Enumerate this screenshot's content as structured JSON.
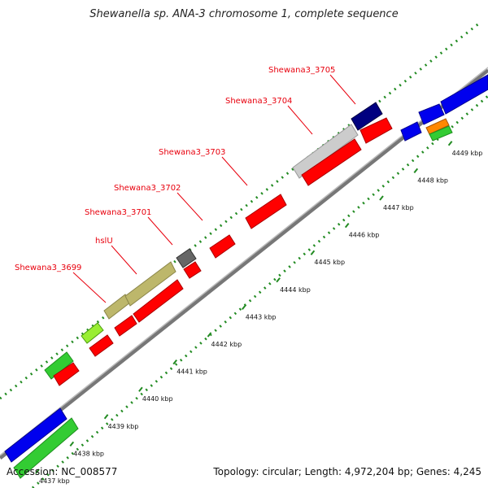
{
  "title": "Shewanella sp. ANA-3 chromosome 1, complete sequence",
  "footer": {
    "accession": "Accession: NC_008577",
    "summary": "Topology: circular; Length: 4,972,204 bp; Genes: 4,245"
  },
  "colors": {
    "backbone": "#8c8c8c",
    "tick_dots": "#228b22",
    "label_red": "#e8000d",
    "blue": "#0000ee",
    "red": "#ff0000",
    "green": "#33cc33",
    "olive": "#bdb76b",
    "light_gray": "#cccccc",
    "dark_gray": "#666666",
    "navy": "#000080",
    "lime": "#99ee33",
    "orange": "#ff8800"
  },
  "ticks": [
    "4437 kbp",
    "4438 kbp",
    "4439 kbp",
    "4440 kbp",
    "4441 kbp",
    "4442 kbp",
    "4443 kbp",
    "4444 kbp",
    "4445 kbp",
    "4446 kbp",
    "4447 kbp",
    "4448 kbp",
    "4449 kbp"
  ],
  "gene_labels": [
    "Shewana3_3699",
    "hslU",
    "Shewana3_3701",
    "Shewana3_3702",
    "Shewana3_3703",
    "Shewana3_3704",
    "Shewana3_3705"
  ]
}
